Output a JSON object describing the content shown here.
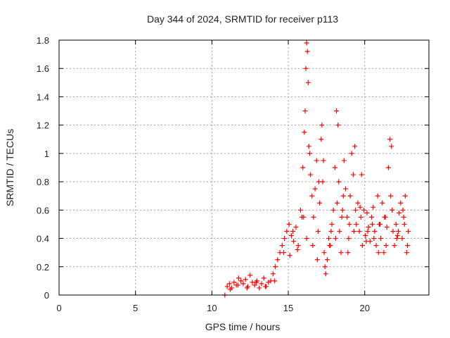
{
  "chart_data": {
    "type": "scatter",
    "title": "Day 344 of 2024, SRMTID for receiver p113",
    "xlabel": "GPS time / hours",
    "ylabel": "SRMTID / TECUs",
    "xlim": [
      0,
      24.2
    ],
    "ylim": [
      0,
      1.8
    ],
    "x_ticks": [
      0,
      5,
      10,
      15,
      20
    ],
    "x_tick_labels": [
      "0",
      "5",
      "10",
      "15",
      "20"
    ],
    "y_ticks": [
      0,
      0.2,
      0.4,
      0.6,
      0.8,
      1.0,
      1.2,
      1.4,
      1.6,
      1.8
    ],
    "y_tick_labels": [
      "0",
      "0.2",
      "0.4",
      "0.6",
      "0.8",
      "1",
      "1.2",
      "1.4",
      "1.6",
      "1.8"
    ],
    "grid": true,
    "marker": "plus",
    "series": [
      {
        "name": "SRMTID",
        "color": "#ff0000",
        "x": [
          10.85,
          11.0,
          11.15,
          11.3,
          11.45,
          11.6,
          11.75,
          11.9,
          12.05,
          12.2,
          12.35,
          12.5,
          12.65,
          12.8,
          12.95,
          13.1,
          13.25,
          13.4,
          13.55,
          13.7,
          13.85,
          14.0,
          14.15,
          14.3,
          14.45,
          14.6,
          14.75,
          14.9,
          15.05,
          15.2,
          15.35,
          15.5,
          15.65,
          15.8,
          15.95,
          16.05,
          16.1,
          16.15,
          16.2,
          16.25,
          16.3,
          16.35,
          16.45,
          16.55,
          16.65,
          16.75,
          16.85,
          16.95,
          17.05,
          17.15,
          17.2,
          17.25,
          17.35,
          17.45,
          17.55,
          17.65,
          17.75,
          17.85,
          17.95,
          18.05,
          18.15,
          18.25,
          18.3,
          18.35,
          18.45,
          18.55,
          18.65,
          18.75,
          18.85,
          18.95,
          19.05,
          19.15,
          19.25,
          19.35,
          19.45,
          19.55,
          19.65,
          19.75,
          19.85,
          19.95,
          20.05,
          20.15,
          20.25,
          20.35,
          20.45,
          20.55,
          20.65,
          20.75,
          20.85,
          20.95,
          21.05,
          21.15,
          21.25,
          21.35,
          21.45,
          21.55,
          21.65,
          21.75,
          21.8,
          21.85,
          21.95,
          22.05,
          22.15,
          22.25,
          22.35,
          22.45,
          22.55,
          22.65,
          22.75,
          22.85,
          11.2,
          11.7,
          12.3,
          12.9,
          13.5,
          14.1,
          14.7,
          15.3,
          15.9,
          16.2,
          16.6,
          17.0,
          17.4,
          17.8,
          18.2,
          18.6,
          19.0,
          19.4,
          19.8,
          20.2,
          20.6,
          21.0,
          21.4,
          21.8,
          22.2,
          22.6,
          15.1,
          15.6,
          16.0,
          16.4,
          16.9,
          17.3,
          17.7,
          18.1,
          18.5,
          18.9,
          19.3,
          19.7,
          20.1,
          20.5,
          20.9,
          21.3,
          21.7,
          22.1,
          22.5,
          22.8
        ],
        "y": [
          0.0,
          0.06,
          0.08,
          0.05,
          0.09,
          0.07,
          0.12,
          0.1,
          0.08,
          0.11,
          0.06,
          0.14,
          0.09,
          0.07,
          0.1,
          0.05,
          0.08,
          0.12,
          0.06,
          0.09,
          0.1,
          0.15,
          0.2,
          0.25,
          0.3,
          0.35,
          0.4,
          0.45,
          0.5,
          0.42,
          0.38,
          0.48,
          0.35,
          0.6,
          0.9,
          1.15,
          1.3,
          1.6,
          1.78,
          1.72,
          1.5,
          1.05,
          0.85,
          0.7,
          0.55,
          0.75,
          0.95,
          0.45,
          0.65,
          1.1,
          1.2,
          0.8,
          0.3,
          0.15,
          0.25,
          0.4,
          0.35,
          0.5,
          0.6,
          0.9,
          1.3,
          1.2,
          0.8,
          0.45,
          0.3,
          0.6,
          0.95,
          0.75,
          0.55,
          0.4,
          0.7,
          1.0,
          0.85,
          1.05,
          0.5,
          0.65,
          0.45,
          0.55,
          0.35,
          0.6,
          0.42,
          0.58,
          0.48,
          0.38,
          0.55,
          0.62,
          0.45,
          0.35,
          0.7,
          0.5,
          0.4,
          0.65,
          0.3,
          0.55,
          0.48,
          0.9,
          1.1,
          1.05,
          0.6,
          0.45,
          0.35,
          0.5,
          0.42,
          0.58,
          0.65,
          0.4,
          0.55,
          0.7,
          0.3,
          0.45,
          0.04,
          0.07,
          0.05,
          0.09,
          0.06,
          0.1,
          0.3,
          0.45,
          0.55,
          0.4,
          0.35,
          0.8,
          0.2,
          0.45,
          0.65,
          0.7,
          0.5,
          0.6,
          0.85,
          0.45,
          0.4,
          0.5,
          0.35,
          0.6,
          0.45,
          0.5,
          0.28,
          0.32,
          0.55,
          1.0,
          0.25,
          0.95,
          0.35,
          0.4,
          0.55,
          0.3,
          0.45,
          0.62,
          0.38,
          0.5,
          0.3,
          0.55,
          0.7,
          0.4,
          0.6,
          0.35
        ]
      }
    ]
  }
}
